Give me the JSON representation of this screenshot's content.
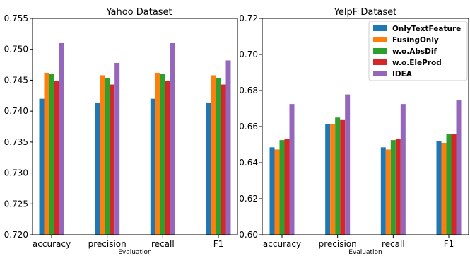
{
  "chart_data": [
    {
      "type": "bar",
      "title": "Yahoo Dataset",
      "xlabel": "Evaluation",
      "ylabel": "",
      "categories": [
        "accuracy",
        "precision",
        "recall",
        "F1"
      ],
      "ylim": [
        0.72,
        0.755
      ],
      "yticks": [
        "0.720",
        "0.725",
        "0.730",
        "0.735",
        "0.740",
        "0.745",
        "0.750",
        "0.755"
      ],
      "grid": false,
      "series": [
        {
          "name": "OnlyTextFeature",
          "color": "#1f77b4",
          "values": [
            0.742,
            0.7414,
            0.742,
            0.7414
          ]
        },
        {
          "name": "FusingOnly",
          "color": "#ff7f0e",
          "values": [
            0.7462,
            0.7458,
            0.7462,
            0.7458
          ]
        },
        {
          "name": "w.o.AbsDif",
          "color": "#2ca02c",
          "values": [
            0.746,
            0.7453,
            0.746,
            0.7454
          ]
        },
        {
          "name": "w.o.EleProd",
          "color": "#d62728",
          "values": [
            0.7449,
            0.7443,
            0.7449,
            0.7443
          ]
        },
        {
          "name": "IDEA",
          "color": "#9467bd",
          "values": [
            0.751,
            0.7478,
            0.751,
            0.7482
          ]
        }
      ]
    },
    {
      "type": "bar",
      "title": "YelpF Dataset",
      "xlabel": "Evaluation",
      "ylabel": "",
      "categories": [
        "accuracy",
        "precision",
        "recall",
        "F1"
      ],
      "ylim": [
        0.6,
        0.72
      ],
      "yticks": [
        "0.60",
        "0.62",
        "0.64",
        "0.66",
        "0.68",
        "0.70",
        "0.72"
      ],
      "grid": false,
      "legend_position": "top-right",
      "series": [
        {
          "name": "OnlyTextFeature",
          "color": "#1f77b4",
          "values": [
            0.6485,
            0.6615,
            0.6485,
            0.652
          ]
        },
        {
          "name": "FusingOnly",
          "color": "#ff7f0e",
          "values": [
            0.6473,
            0.6612,
            0.6473,
            0.651
          ]
        },
        {
          "name": "w.o.AbsDif",
          "color": "#2ca02c",
          "values": [
            0.6525,
            0.665,
            0.6525,
            0.6557
          ]
        },
        {
          "name": "w.o.EleProd",
          "color": "#d62728",
          "values": [
            0.653,
            0.664,
            0.653,
            0.656
          ]
        },
        {
          "name": "IDEA",
          "color": "#9467bd",
          "values": [
            0.6725,
            0.6778,
            0.6725,
            0.6745
          ]
        }
      ]
    }
  ]
}
